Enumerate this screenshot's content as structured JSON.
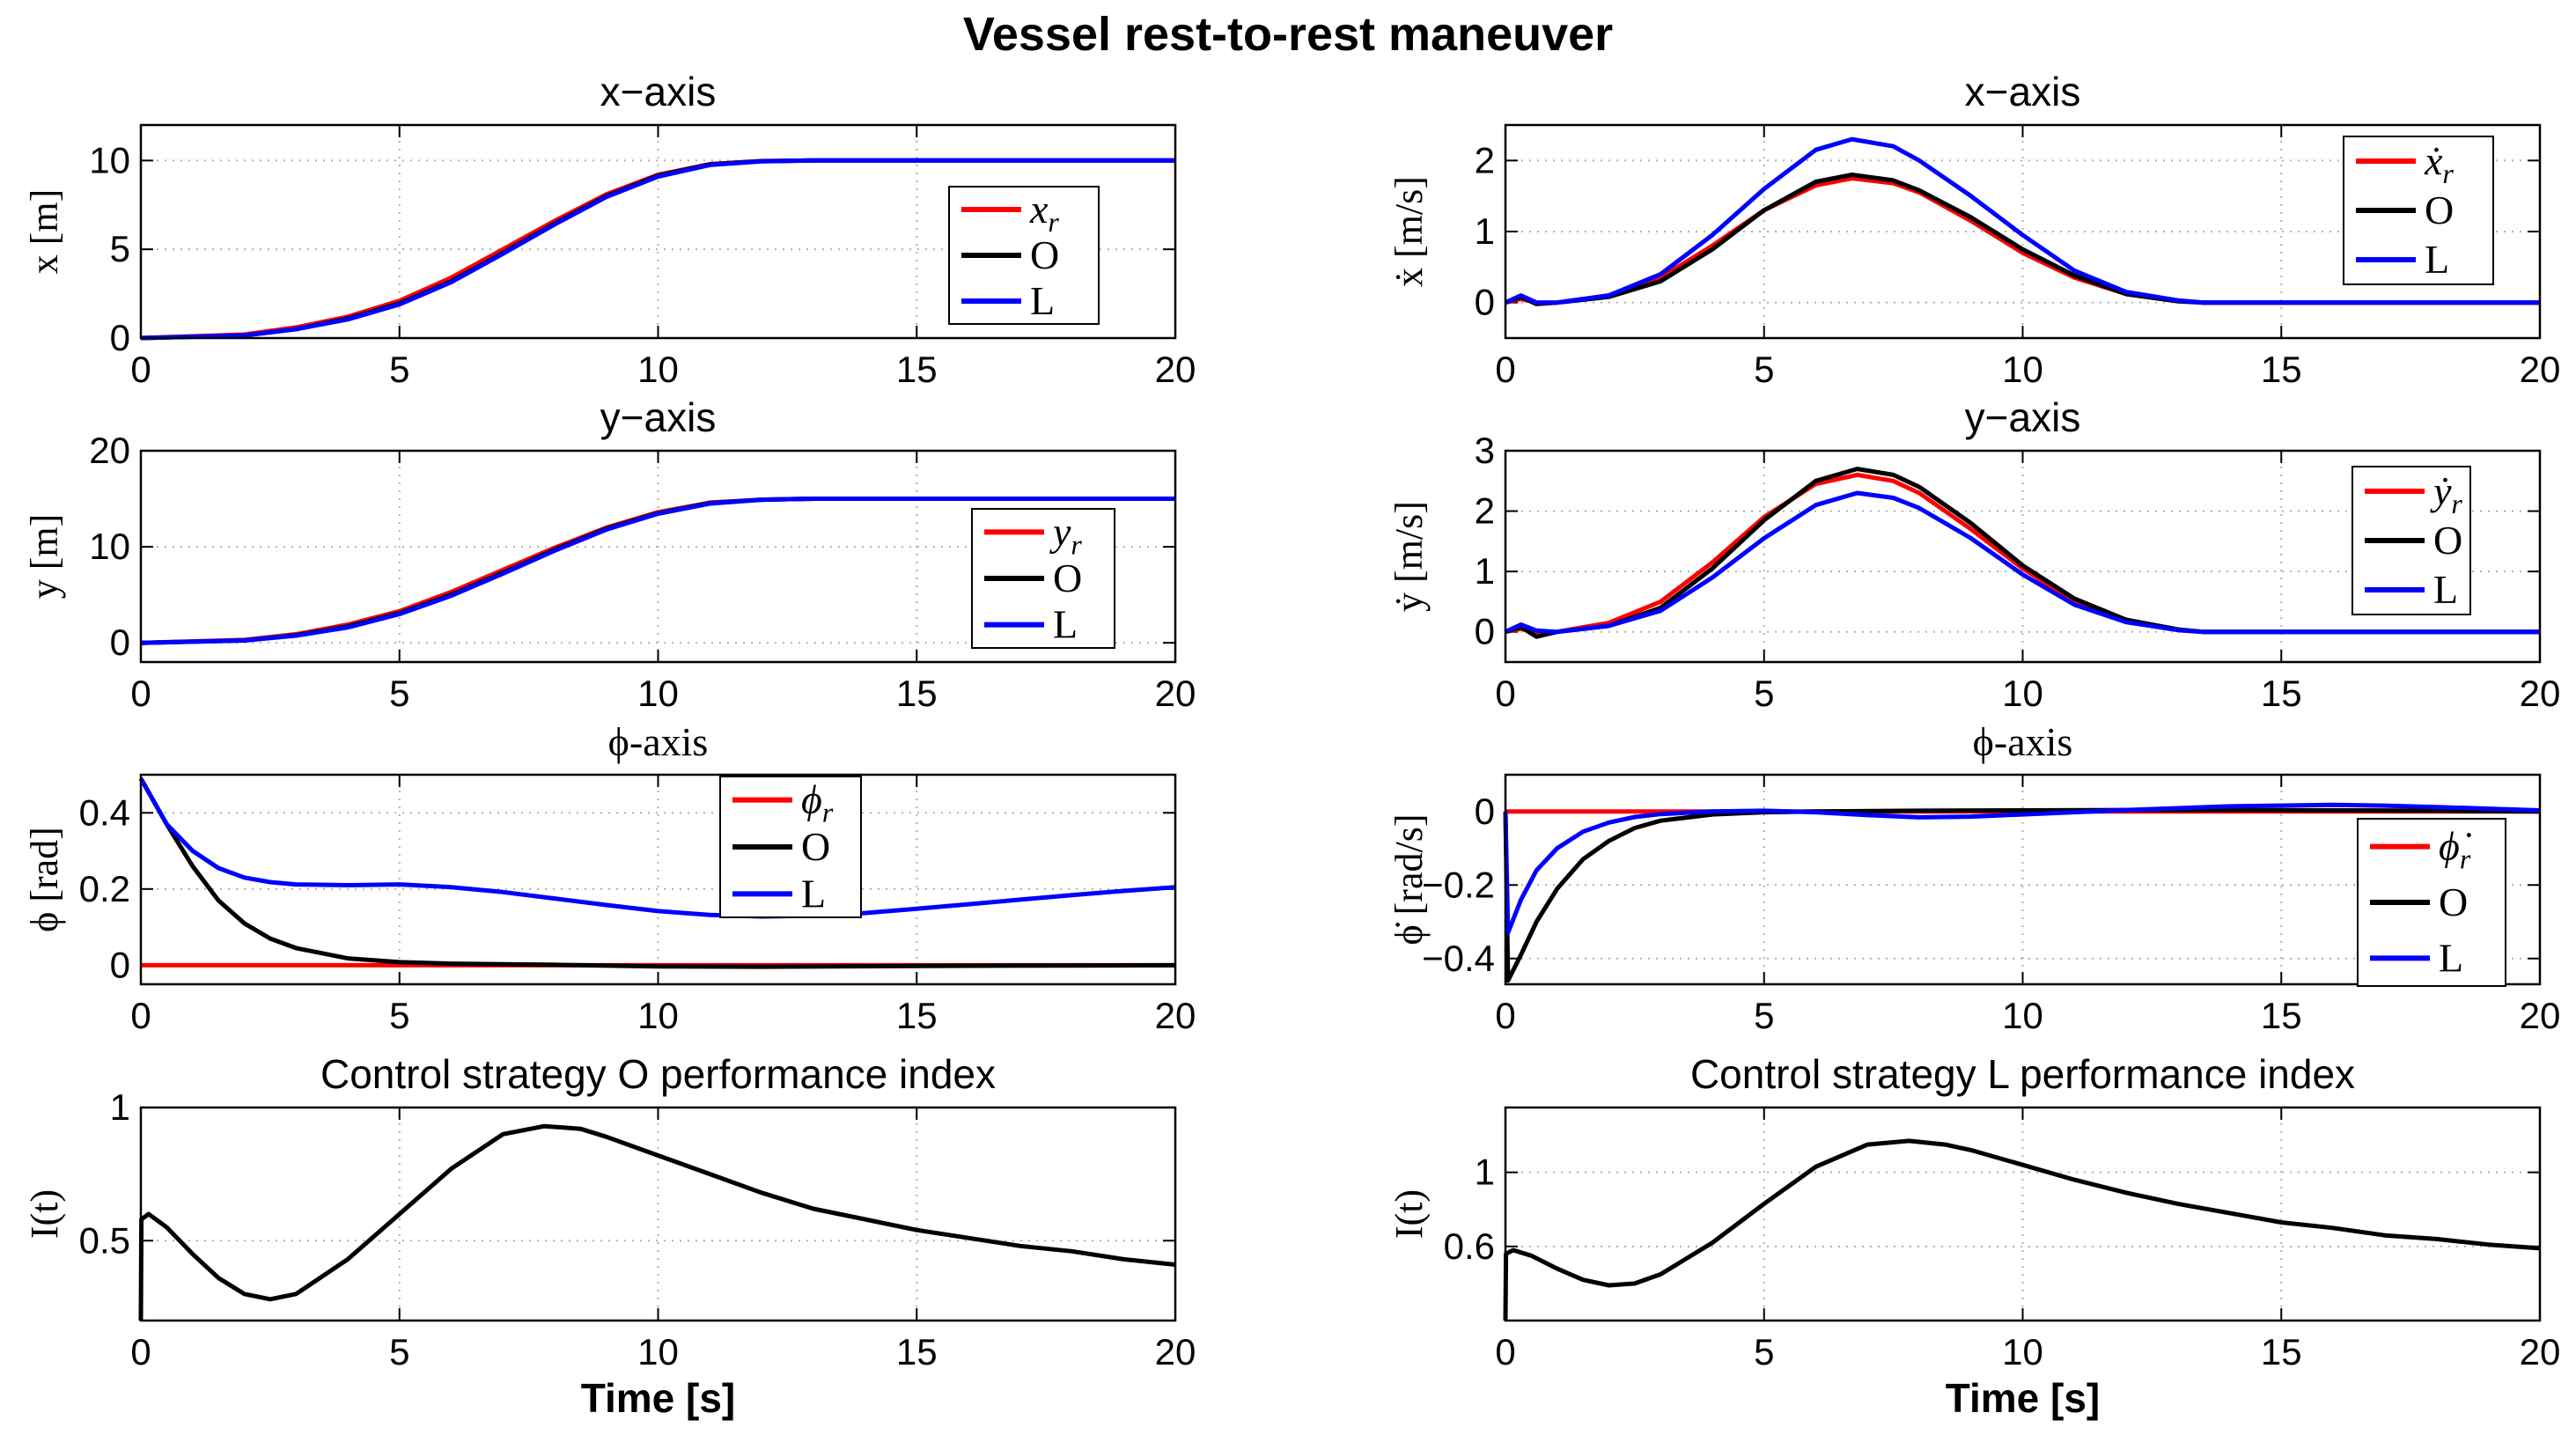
{
  "figure_title": "Vessel rest-to-rest maneuver",
  "colors": {
    "ref": "#ff0000",
    "O": "#000000",
    "L": "#0000ff",
    "grid": "#b0b0b0"
  },
  "chart_data": [
    {
      "id": "x",
      "type": "line",
      "title": "x−axis",
      "title_style": "sans",
      "ylabel": "x [m]",
      "xlabel": "",
      "xlim": [
        0,
        20
      ],
      "ylim": [
        0,
        12
      ],
      "xticks": [
        0,
        5,
        10,
        15,
        20
      ],
      "yticks": [
        0,
        5,
        10
      ],
      "legend": [
        "x_r",
        "O",
        "L"
      ],
      "legend_position": "mid-right",
      "grid": true,
      "series": [
        {
          "name": "x_r",
          "color": "ref",
          "x": [
            0,
            2,
            3,
            4,
            5,
            6,
            7,
            8,
            9,
            10,
            11,
            12,
            13,
            20
          ],
          "y": [
            0,
            0.2,
            0.6,
            1.2,
            2.1,
            3.4,
            5.0,
            6.6,
            8.1,
            9.2,
            9.8,
            9.97,
            10,
            10
          ]
        },
        {
          "name": "O",
          "color": "O",
          "x": [
            0,
            2,
            3,
            4,
            5,
            6,
            7,
            8,
            9,
            10,
            11,
            12,
            13,
            20
          ],
          "y": [
            0,
            0.15,
            0.5,
            1.1,
            1.95,
            3.2,
            4.8,
            6.45,
            8.0,
            9.15,
            9.78,
            9.96,
            10,
            10
          ]
        },
        {
          "name": "L",
          "color": "L",
          "x": [
            0,
            2,
            3,
            4,
            5,
            6,
            7,
            8,
            9,
            10,
            11,
            12,
            13,
            20
          ],
          "y": [
            0,
            0.15,
            0.5,
            1.05,
            1.9,
            3.15,
            4.75,
            6.4,
            7.95,
            9.1,
            9.75,
            9.95,
            10,
            10
          ]
        }
      ]
    },
    {
      "id": "xdot",
      "type": "line",
      "title": "x−axis",
      "title_style": "sans",
      "ylabel": "ẋ [m/s]",
      "xlabel": "",
      "xlim": [
        0,
        20
      ],
      "ylim": [
        -0.5,
        2.5
      ],
      "xticks": [
        0,
        5,
        10,
        15,
        20
      ],
      "yticks": [
        0,
        1,
        2
      ],
      "legend": [
        "ẋ_r",
        "O",
        "L"
      ],
      "legend_position": "top-right",
      "grid": true,
      "series": [
        {
          "name": "ẋ_r",
          "color": "ref",
          "x": [
            0,
            0.3,
            0.6,
            1,
            2,
            3,
            4,
            5,
            6,
            6.7,
            7.5,
            8,
            9,
            10,
            11,
            12,
            13,
            13.5,
            14,
            20
          ],
          "y": [
            0,
            0.05,
            0,
            0,
            0.1,
            0.35,
            0.8,
            1.3,
            1.65,
            1.75,
            1.68,
            1.55,
            1.15,
            0.7,
            0.35,
            0.12,
            0.02,
            0,
            0,
            0
          ]
        },
        {
          "name": "O",
          "color": "O",
          "x": [
            0,
            0.3,
            0.6,
            1,
            2,
            3,
            4,
            5,
            6,
            6.7,
            7.5,
            8,
            9,
            10,
            11,
            12,
            13,
            13.5,
            14,
            20
          ],
          "y": [
            0,
            0.08,
            -0.02,
            0,
            0.08,
            0.3,
            0.75,
            1.3,
            1.7,
            1.8,
            1.72,
            1.58,
            1.2,
            0.75,
            0.38,
            0.12,
            0.02,
            0,
            0,
            0
          ]
        },
        {
          "name": "L",
          "color": "L",
          "x": [
            0,
            0.3,
            0.6,
            1,
            2,
            3,
            4,
            5,
            6,
            6.7,
            7.5,
            8,
            9,
            10,
            11,
            12,
            13,
            13.5,
            14,
            20
          ],
          "y": [
            0,
            0.1,
            0,
            0,
            0.1,
            0.4,
            0.95,
            1.6,
            2.15,
            2.3,
            2.2,
            2.0,
            1.5,
            0.95,
            0.45,
            0.15,
            0.03,
            0,
            0,
            0
          ]
        }
      ]
    },
    {
      "id": "y",
      "type": "line",
      "title": "y−axis",
      "title_style": "sans",
      "ylabel": "y [m]",
      "xlabel": "",
      "xlim": [
        0,
        20
      ],
      "ylim": [
        -2,
        20
      ],
      "xticks": [
        0,
        5,
        10,
        15,
        20
      ],
      "yticks": [
        0,
        10,
        20
      ],
      "legend": [
        "y_r",
        "O",
        "L"
      ],
      "legend_position": "bottom-right",
      "grid": true,
      "series": [
        {
          "name": "y_r",
          "color": "ref",
          "x": [
            0,
            2,
            3,
            4,
            5,
            6,
            7,
            8,
            9,
            10,
            11,
            12,
            13,
            20
          ],
          "y": [
            0,
            0.3,
            0.9,
            1.9,
            3.3,
            5.3,
            7.6,
            9.9,
            12.0,
            13.6,
            14.6,
            14.9,
            15,
            15
          ]
        },
        {
          "name": "O",
          "color": "O",
          "x": [
            0,
            2,
            3,
            4,
            5,
            6,
            7,
            8,
            9,
            10,
            11,
            12,
            13,
            20
          ],
          "y": [
            0,
            0.25,
            0.8,
            1.7,
            3.1,
            5.0,
            7.3,
            9.7,
            11.9,
            13.5,
            14.55,
            14.9,
            15,
            15
          ]
        },
        {
          "name": "L",
          "color": "L",
          "x": [
            0,
            2,
            3,
            4,
            5,
            6,
            7,
            8,
            9,
            10,
            11,
            12,
            13,
            20
          ],
          "y": [
            0,
            0.25,
            0.75,
            1.6,
            3.0,
            4.9,
            7.2,
            9.6,
            11.8,
            13.45,
            14.5,
            14.9,
            15,
            15
          ]
        }
      ]
    },
    {
      "id": "ydot",
      "type": "line",
      "title": "y−axis",
      "title_style": "sans",
      "ylabel": "ẏ [m/s]",
      "xlabel": "",
      "xlim": [
        0,
        20
      ],
      "ylim": [
        -0.5,
        3
      ],
      "xticks": [
        0,
        5,
        10,
        15,
        20
      ],
      "yticks": [
        0,
        1,
        2,
        3
      ],
      "legend": [
        "ẏ_r",
        "O",
        "L"
      ],
      "legend_position": "mid-right",
      "grid": true,
      "series": [
        {
          "name": "ẏ_r",
          "color": "ref",
          "x": [
            0,
            0.3,
            0.6,
            1,
            2,
            3,
            4,
            5,
            6,
            6.8,
            7.5,
            8,
            9,
            10,
            11,
            12,
            13,
            13.5,
            14,
            20
          ],
          "y": [
            0,
            0.05,
            0,
            0,
            0.15,
            0.5,
            1.15,
            1.9,
            2.45,
            2.6,
            2.5,
            2.3,
            1.7,
            1.05,
            0.5,
            0.18,
            0.03,
            0,
            0,
            0
          ]
        },
        {
          "name": "O",
          "color": "O",
          "x": [
            0,
            0.3,
            0.6,
            1,
            2,
            3,
            4,
            5,
            6,
            6.8,
            7.5,
            8,
            9,
            10,
            11,
            12,
            13,
            13.5,
            14,
            20
          ],
          "y": [
            0,
            0.08,
            -0.08,
            0,
            0.1,
            0.4,
            1.05,
            1.85,
            2.5,
            2.7,
            2.6,
            2.4,
            1.8,
            1.1,
            0.55,
            0.2,
            0.04,
            0,
            0,
            0
          ]
        },
        {
          "name": "L",
          "color": "L",
          "x": [
            0,
            0.3,
            0.6,
            1,
            2,
            3,
            4,
            5,
            6,
            6.8,
            7.5,
            8,
            9,
            10,
            11,
            12,
            13,
            13.5,
            14,
            20
          ],
          "y": [
            0,
            0.12,
            0.02,
            0,
            0.1,
            0.35,
            0.9,
            1.55,
            2.1,
            2.3,
            2.22,
            2.05,
            1.55,
            0.95,
            0.45,
            0.16,
            0.03,
            0,
            0,
            0
          ]
        }
      ]
    },
    {
      "id": "phi",
      "type": "line",
      "title": "ϕ-axis",
      "title_style": "serif",
      "ylabel": "ϕ [rad]",
      "xlabel": "",
      "xlim": [
        0,
        20
      ],
      "ylim": [
        -0.05,
        0.5
      ],
      "xticks": [
        0,
        5,
        10,
        15,
        20
      ],
      "yticks": [
        0,
        0.2,
        0.4
      ],
      "legend": [
        "ϕ_r",
        "O",
        "L"
      ],
      "legend_position": "top-center",
      "grid": true,
      "series": [
        {
          "name": "ϕ_r",
          "color": "ref",
          "x": [
            0,
            20
          ],
          "y": [
            0,
            0
          ]
        },
        {
          "name": "O",
          "color": "O",
          "x": [
            0,
            0.5,
            1,
            1.5,
            2,
            2.5,
            3,
            4,
            5,
            6,
            8,
            10,
            12,
            15,
            20
          ],
          "y": [
            0.49,
            0.37,
            0.26,
            0.17,
            0.11,
            0.07,
            0.045,
            0.018,
            0.008,
            0.004,
            0.001,
            -0.003,
            -0.004,
            -0.002,
            0
          ]
        },
        {
          "name": "L",
          "color": "L",
          "x": [
            0,
            0.5,
            1,
            1.5,
            2,
            2.5,
            3,
            4,
            5,
            6,
            7,
            8,
            9,
            10,
            11,
            12,
            13,
            14,
            15,
            16,
            17,
            18,
            19,
            20
          ],
          "y": [
            0.49,
            0.37,
            0.3,
            0.255,
            0.23,
            0.218,
            0.212,
            0.21,
            0.212,
            0.205,
            0.192,
            0.175,
            0.158,
            0.142,
            0.132,
            0.128,
            0.13,
            0.137,
            0.148,
            0.16,
            0.172,
            0.184,
            0.195,
            0.205
          ]
        }
      ]
    },
    {
      "id": "phidot",
      "type": "line",
      "title": "ϕ-axis",
      "title_style": "serif",
      "ylabel": "ϕ̇ [rad/s]",
      "xlabel": "",
      "xlim": [
        0,
        20
      ],
      "ylim": [
        -0.47,
        0.1
      ],
      "xticks": [
        0,
        5,
        10,
        15,
        20
      ],
      "yticks": [
        0,
        -0.2,
        -0.4
      ],
      "legend": [
        "ϕ̇_r",
        "O",
        "L"
      ],
      "legend_position": "bottom-right",
      "grid": true,
      "series": [
        {
          "name": "ϕ̇_r",
          "color": "ref",
          "x": [
            0,
            20
          ],
          "y": [
            0,
            0
          ]
        },
        {
          "name": "O",
          "color": "O",
          "x": [
            0,
            0.05,
            0.3,
            0.6,
            1,
            1.5,
            2,
            2.5,
            3,
            4,
            5,
            6,
            8,
            10,
            12,
            14,
            16,
            18,
            20
          ],
          "y": [
            0,
            -0.46,
            -0.39,
            -0.3,
            -0.21,
            -0.13,
            -0.08,
            -0.045,
            -0.025,
            -0.008,
            -0.002,
            0,
            0.002,
            0.003,
            0.004,
            0.004,
            0.003,
            0.002,
            0
          ]
        },
        {
          "name": "L",
          "color": "L",
          "x": [
            0,
            0.05,
            0.3,
            0.6,
            1,
            1.5,
            2,
            2.5,
            3,
            4,
            5,
            6,
            7,
            8,
            9,
            10,
            12,
            14,
            16,
            17,
            18,
            20
          ],
          "y": [
            0,
            -0.33,
            -0.24,
            -0.16,
            -0.1,
            -0.055,
            -0.03,
            -0.015,
            -0.007,
            0,
            0.002,
            -0.002,
            -0.01,
            -0.016,
            -0.014,
            -0.008,
            0.004,
            0.014,
            0.018,
            0.016,
            0.012,
            0.003
          ]
        }
      ]
    },
    {
      "id": "indexO",
      "type": "line",
      "title": "Control strategy O performance index",
      "title_style": "sans",
      "ylabel": "I(t)",
      "xlabel": "Time [s]",
      "xlim": [
        0,
        20
      ],
      "ylim": [
        0.2,
        1
      ],
      "xticks": [
        0,
        5,
        10,
        15,
        20
      ],
      "yticks": [
        0.5,
        1
      ],
      "legend": [],
      "grid": true,
      "series": [
        {
          "name": "O",
          "color": "O",
          "x": [
            0,
            0.01,
            0.15,
            0.5,
            1,
            1.5,
            2,
            2.5,
            3,
            4,
            5,
            6,
            7,
            7.8,
            8.5,
            9,
            10,
            11,
            12,
            13,
            14,
            15,
            16,
            17,
            18,
            19,
            20
          ],
          "y": [
            0.2,
            0.58,
            0.6,
            0.55,
            0.45,
            0.36,
            0.3,
            0.28,
            0.3,
            0.43,
            0.6,
            0.77,
            0.9,
            0.93,
            0.92,
            0.89,
            0.82,
            0.75,
            0.68,
            0.62,
            0.58,
            0.54,
            0.51,
            0.48,
            0.46,
            0.43,
            0.41
          ]
        }
      ]
    },
    {
      "id": "indexL",
      "type": "line",
      "title": "Control strategy L performance index",
      "title_style": "sans",
      "ylabel": "I(t)",
      "xlabel": "Time [s]",
      "xlim": [
        0,
        20
      ],
      "ylim": [
        0.2,
        1.35
      ],
      "xticks": [
        0,
        5,
        10,
        15,
        20
      ],
      "yticks": [
        0.6,
        1
      ],
      "legend": [],
      "grid": true,
      "series": [
        {
          "name": "L",
          "color": "O",
          "x": [
            0,
            0.01,
            0.15,
            0.5,
            1,
            1.5,
            2,
            2.5,
            3,
            4,
            5,
            6,
            7,
            7.8,
            8.5,
            9,
            10,
            11,
            12,
            13,
            14,
            15,
            16,
            17,
            18,
            19,
            20
          ],
          "y": [
            0.2,
            0.56,
            0.58,
            0.55,
            0.48,
            0.42,
            0.39,
            0.4,
            0.45,
            0.62,
            0.83,
            1.03,
            1.15,
            1.17,
            1.15,
            1.12,
            1.04,
            0.96,
            0.89,
            0.83,
            0.78,
            0.73,
            0.7,
            0.66,
            0.64,
            0.61,
            0.59
          ]
        }
      ]
    }
  ]
}
